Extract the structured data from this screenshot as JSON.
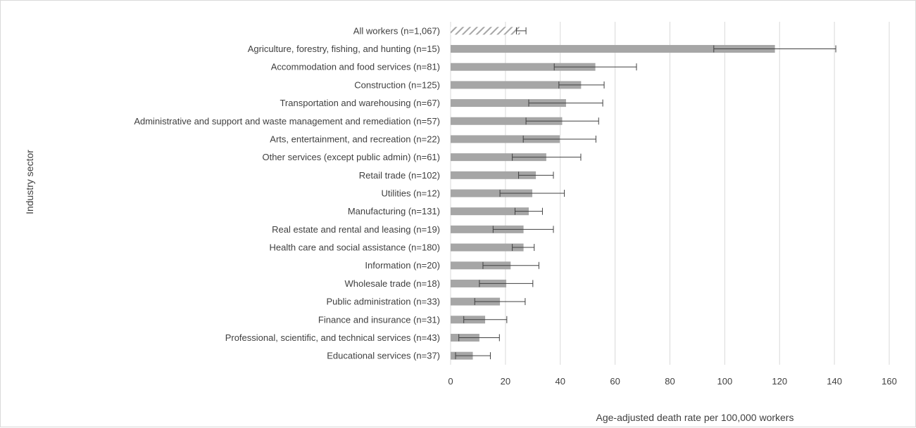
{
  "chart_data": {
    "type": "bar",
    "orientation": "horizontal",
    "title": "",
    "xlabel": "Age-adjusted death rate per 100,000 workers",
    "ylabel": "Industry sector",
    "xlim": [
      0,
      160
    ],
    "xticks": [
      0,
      20,
      40,
      60,
      80,
      100,
      120,
      140,
      160
    ],
    "grid": "vertical gridlines",
    "legend": "none",
    "colors": {
      "bar": "#a6a6a6",
      "highlight_hatch": "#a6a6a6",
      "error_bar": "#404040"
    },
    "categories": [
      "All workers (n=1,067)",
      "Agriculture, forestry, fishing, and hunting (n=15)",
      "Accommodation and food services (n=81)",
      "Construction (n=125)",
      "Transportation and warehousing (n=67)",
      "Administrative and support and waste management and remediation (n=57)",
      "Arts, entertainment, and recreation (n=22)",
      "Other services (except public admin) (n=61)",
      "Retail trade (n=102)",
      "Utilities (n=12)",
      "Manufacturing (n=131)",
      "Real estate and rental and leasing (n=19)",
      "Health care and social assistance (n=180)",
      "Information (n=20)",
      "Wholesale trade (n=18)",
      "Public administration (n=33)",
      "Finance and insurance (n=31)",
      "Professional, scientific, and technical services  (n=43)",
      "Educational services (n=37)"
    ],
    "values": [
      25.3,
      118.3,
      52.8,
      47.6,
      42.1,
      40.7,
      39.8,
      34.9,
      31.1,
      29.8,
      28.5,
      26.6,
      26.6,
      21.9,
      20.3,
      18.0,
      12.6,
      10.5,
      8.1
    ],
    "error_low": [
      24.0,
      96.0,
      37.8,
      39.5,
      28.5,
      27.5,
      26.5,
      22.5,
      24.8,
      18.0,
      23.5,
      15.5,
      22.5,
      11.8,
      10.5,
      8.8,
      4.8,
      3.0,
      1.8
    ],
    "error_high": [
      27.5,
      140.5,
      67.8,
      56.0,
      55.5,
      54.0,
      53.0,
      47.5,
      37.5,
      41.5,
      33.5,
      37.5,
      30.5,
      32.2,
      30.0,
      27.2,
      20.5,
      17.8,
      14.5
    ],
    "highlight": [
      "All workers (n=1,067)"
    ]
  }
}
